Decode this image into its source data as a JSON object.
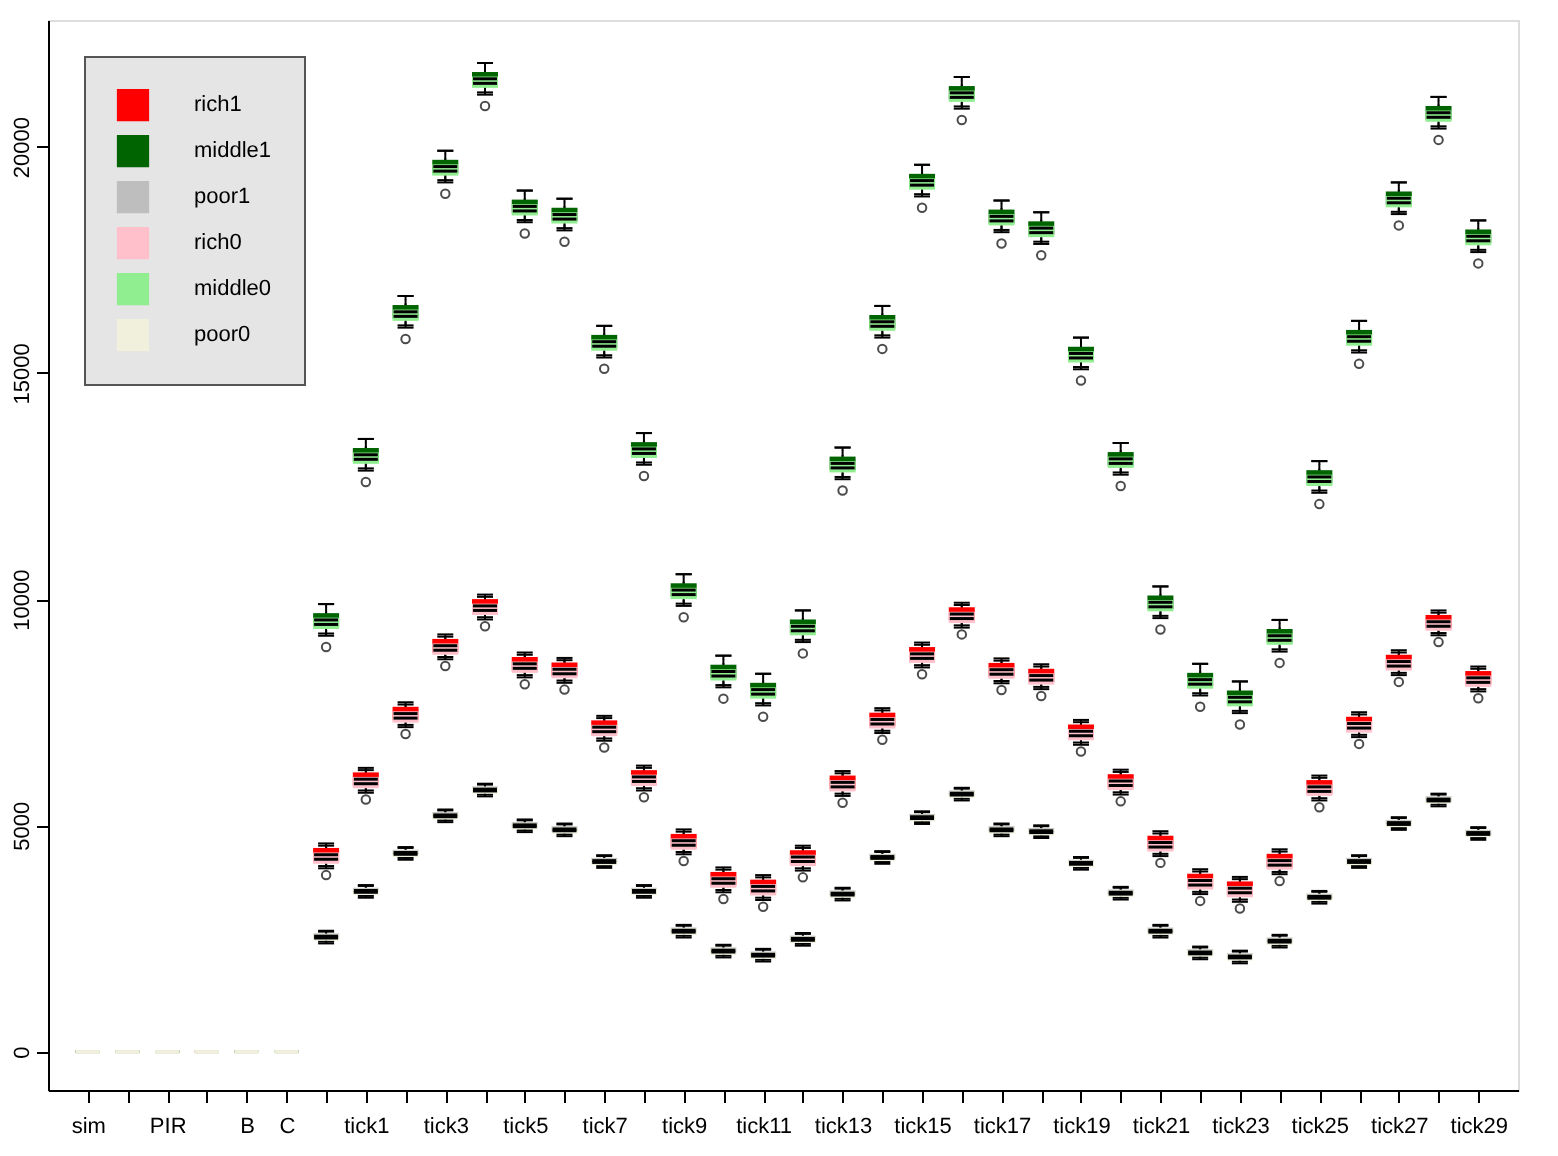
{
  "chart_data": {
    "type": "box",
    "categories": [
      "sim",
      null,
      "PIR",
      null,
      "B",
      "C",
      null,
      "tick1",
      null,
      "tick3",
      null,
      "tick5",
      null,
      "tick7",
      null,
      "tick9",
      null,
      "tick11",
      null,
      "tick13",
      null,
      "tick15",
      null,
      "tick17",
      null,
      "tick19",
      null,
      "tick21",
      null,
      "tick23",
      null,
      "tick25",
      null,
      "tick27",
      null,
      "tick29"
    ],
    "ylim": [
      -850,
      22800
    ],
    "yticks": [
      0,
      5000,
      10000,
      15000,
      20000
    ],
    "grid": false,
    "legend": "top left",
    "series": [
      {
        "name": "rich1",
        "color": "#ff0000",
        "boxes": [
          {
            "low": 0,
            "q1": 0,
            "median": 0,
            "q3": 0,
            "high": 0
          },
          {
            "low": 0,
            "q1": 0,
            "median": 0,
            "q3": 0,
            "high": 0
          },
          {
            "low": 0,
            "q1": 0,
            "median": 0,
            "q3": 0,
            "high": 0
          },
          {
            "low": 0,
            "q1": 0,
            "median": 0,
            "q3": 0,
            "high": 0
          },
          {
            "low": 0,
            "q1": 0,
            "median": 0,
            "q3": 0,
            "high": 0
          },
          {
            "low": 0,
            "q1": 0,
            "median": 0,
            "q3": 0,
            "high": 0
          },
          {
            "low": 4100,
            "q1": 4200,
            "median": 4350,
            "q3": 4500,
            "high": 4600
          },
          {
            "low": 5770,
            "q1": 5870,
            "median": 6020,
            "q3": 6170,
            "high": 6270
          },
          {
            "low": 7220,
            "q1": 7320,
            "median": 7470,
            "q3": 7620,
            "high": 7720
          },
          {
            "low": 8720,
            "q1": 8820,
            "median": 8970,
            "q3": 9120,
            "high": 9220
          },
          {
            "low": 9600,
            "q1": 9700,
            "median": 9850,
            "q3": 10000,
            "high": 10100
          },
          {
            "low": 8320,
            "q1": 8420,
            "median": 8570,
            "q3": 8720,
            "high": 8820
          },
          {
            "low": 8200,
            "q1": 8300,
            "median": 8450,
            "q3": 8600,
            "high": 8700
          },
          {
            "low": 6920,
            "q1": 7020,
            "median": 7170,
            "q3": 7320,
            "high": 7420
          },
          {
            "low": 5820,
            "q1": 5920,
            "median": 6070,
            "q3": 6220,
            "high": 6320
          },
          {
            "low": 4410,
            "q1": 4510,
            "median": 4660,
            "q3": 4810,
            "high": 4910
          },
          {
            "low": 3570,
            "q1": 3670,
            "median": 3820,
            "q3": 3970,
            "high": 4070
          },
          {
            "low": 3400,
            "q1": 3500,
            "median": 3650,
            "q3": 3800,
            "high": 3900
          },
          {
            "low": 4050,
            "q1": 4150,
            "median": 4300,
            "q3": 4450,
            "high": 4550
          },
          {
            "low": 5700,
            "q1": 5800,
            "median": 5950,
            "q3": 6100,
            "high": 6200
          },
          {
            "low": 7090,
            "q1": 7190,
            "median": 7340,
            "q3": 7490,
            "high": 7590
          },
          {
            "low": 8540,
            "q1": 8640,
            "median": 8790,
            "q3": 8940,
            "high": 9040
          },
          {
            "low": 9420,
            "q1": 9520,
            "median": 9670,
            "q3": 9820,
            "high": 9920
          },
          {
            "low": 8190,
            "q1": 8290,
            "median": 8440,
            "q3": 8590,
            "high": 8690
          },
          {
            "low": 8060,
            "q1": 8160,
            "median": 8310,
            "q3": 8460,
            "high": 8560
          },
          {
            "low": 6830,
            "q1": 6930,
            "median": 7080,
            "q3": 7230,
            "high": 7330
          },
          {
            "low": 5730,
            "q1": 5830,
            "median": 5980,
            "q3": 6130,
            "high": 6230
          },
          {
            "low": 4370,
            "q1": 4470,
            "median": 4620,
            "q3": 4770,
            "high": 4870
          },
          {
            "low": 3530,
            "q1": 3630,
            "median": 3780,
            "q3": 3930,
            "high": 4030
          },
          {
            "low": 3360,
            "q1": 3460,
            "median": 3610,
            "q3": 3760,
            "high": 3860
          },
          {
            "low": 3970,
            "q1": 4070,
            "median": 4220,
            "q3": 4370,
            "high": 4470
          },
          {
            "low": 5600,
            "q1": 5700,
            "median": 5850,
            "q3": 6000,
            "high": 6100
          },
          {
            "low": 7000,
            "q1": 7100,
            "median": 7250,
            "q3": 7400,
            "high": 7500
          },
          {
            "low": 8370,
            "q1": 8470,
            "median": 8620,
            "q3": 8770,
            "high": 8870
          },
          {
            "low": 9250,
            "q1": 9350,
            "median": 9500,
            "q3": 9650,
            "high": 9750
          },
          {
            "low": 8010,
            "q1": 8110,
            "median": 8260,
            "q3": 8410,
            "high": 8510
          }
        ]
      },
      {
        "name": "middle1",
        "color": "#006400",
        "boxes": [
          {
            "low": 0,
            "q1": 0,
            "median": 0,
            "q3": 0,
            "high": 0
          },
          {
            "low": 0,
            "q1": 0,
            "median": 0,
            "q3": 0,
            "high": 0
          },
          {
            "low": 0,
            "q1": 0,
            "median": 0,
            "q3": 0,
            "high": 0
          },
          {
            "low": 0,
            "q1": 0,
            "median": 0,
            "q3": 0,
            "high": 0
          },
          {
            "low": 0,
            "q1": 0,
            "median": 0,
            "q3": 0,
            "high": 0
          },
          {
            "low": 0,
            "q1": 0,
            "median": 0,
            "q3": 0,
            "high": 0
          },
          {
            "low": 9240,
            "q1": 9390,
            "median": 9540,
            "q3": 9690,
            "high": 9890
          },
          {
            "low": 12890,
            "q1": 13040,
            "median": 13190,
            "q3": 13340,
            "high": 13540
          },
          {
            "low": 16050,
            "q1": 16200,
            "median": 16350,
            "q3": 16500,
            "high": 16700
          },
          {
            "low": 19260,
            "q1": 19410,
            "median": 19560,
            "q3": 19710,
            "high": 19910
          },
          {
            "low": 21200,
            "q1": 21350,
            "median": 21500,
            "q3": 21650,
            "high": 21850
          },
          {
            "low": 18380,
            "q1": 18530,
            "median": 18680,
            "q3": 18830,
            "high": 19030
          },
          {
            "low": 18200,
            "q1": 18350,
            "median": 18500,
            "q3": 18650,
            "high": 18850
          },
          {
            "low": 15390,
            "q1": 15540,
            "median": 15690,
            "q3": 15840,
            "high": 16040
          },
          {
            "low": 13020,
            "q1": 13170,
            "median": 13320,
            "q3": 13470,
            "high": 13670
          },
          {
            "low": 9900,
            "q1": 10050,
            "median": 10200,
            "q3": 10350,
            "high": 10550
          },
          {
            "low": 8100,
            "q1": 8250,
            "median": 8400,
            "q3": 8550,
            "high": 8750
          },
          {
            "low": 7700,
            "q1": 7850,
            "median": 8000,
            "q3": 8150,
            "high": 8350
          },
          {
            "low": 9100,
            "q1": 9250,
            "median": 9400,
            "q3": 9550,
            "high": 9750
          },
          {
            "low": 12700,
            "q1": 12850,
            "median": 13000,
            "q3": 13150,
            "high": 13350
          },
          {
            "low": 15830,
            "q1": 15980,
            "median": 16130,
            "q3": 16280,
            "high": 16480
          },
          {
            "low": 18950,
            "q1": 19100,
            "median": 19250,
            "q3": 19400,
            "high": 19600
          },
          {
            "low": 20890,
            "q1": 21040,
            "median": 21190,
            "q3": 21340,
            "high": 21540
          },
          {
            "low": 18160,
            "q1": 18310,
            "median": 18460,
            "q3": 18610,
            "high": 18810
          },
          {
            "low": 17900,
            "q1": 18050,
            "median": 18200,
            "q3": 18350,
            "high": 18550
          },
          {
            "low": 15130,
            "q1": 15280,
            "median": 15430,
            "q3": 15580,
            "high": 15780
          },
          {
            "low": 12800,
            "q1": 12950,
            "median": 13100,
            "q3": 13250,
            "high": 13450
          },
          {
            "low": 9630,
            "q1": 9780,
            "median": 9930,
            "q3": 10080,
            "high": 10280
          },
          {
            "low": 7920,
            "q1": 8070,
            "median": 8220,
            "q3": 8370,
            "high": 8570
          },
          {
            "low": 7530,
            "q1": 7680,
            "median": 7830,
            "q3": 7980,
            "high": 8180
          },
          {
            "low": 8890,
            "q1": 9040,
            "median": 9190,
            "q3": 9340,
            "high": 9540
          },
          {
            "low": 12400,
            "q1": 12550,
            "median": 12700,
            "q3": 12850,
            "high": 13050
          },
          {
            "low": 15500,
            "q1": 15650,
            "median": 15800,
            "q3": 15950,
            "high": 16150
          },
          {
            "low": 18560,
            "q1": 18710,
            "median": 18860,
            "q3": 19010,
            "high": 19210
          },
          {
            "low": 20450,
            "q1": 20600,
            "median": 20750,
            "q3": 20900,
            "high": 21100
          },
          {
            "low": 17720,
            "q1": 17870,
            "median": 18020,
            "q3": 18170,
            "high": 18370
          }
        ]
      },
      {
        "name": "poor1",
        "color": "#bebebe",
        "boxes": [
          {
            "low": 0,
            "q1": 0,
            "median": 0,
            "q3": 0,
            "high": 0
          },
          {
            "low": 0,
            "q1": 0,
            "median": 0,
            "q3": 0,
            "high": 0
          },
          {
            "low": 0,
            "q1": 0,
            "median": 0,
            "q3": 0,
            "high": 0
          },
          {
            "low": 0,
            "q1": 0,
            "median": 0,
            "q3": 0,
            "high": 0
          },
          {
            "low": 0,
            "q1": 0,
            "median": 0,
            "q3": 0,
            "high": 0
          },
          {
            "low": 0,
            "q1": 0,
            "median": 0,
            "q3": 0,
            "high": 0
          },
          {
            "low": 2430,
            "q1": 2490,
            "median": 2550,
            "q3": 2610,
            "high": 2670
          },
          {
            "low": 3440,
            "q1": 3500,
            "median": 3560,
            "q3": 3620,
            "high": 3680
          },
          {
            "low": 4280,
            "q1": 4340,
            "median": 4400,
            "q3": 4460,
            "high": 4520
          },
          {
            "low": 5110,
            "q1": 5170,
            "median": 5230,
            "q3": 5290,
            "high": 5350
          },
          {
            "low": 5680,
            "q1": 5740,
            "median": 5800,
            "q3": 5860,
            "high": 5920
          },
          {
            "low": 4890,
            "q1": 4950,
            "median": 5010,
            "q3": 5070,
            "high": 5130
          },
          {
            "low": 4800,
            "q1": 4860,
            "median": 4920,
            "q3": 4980,
            "high": 5040
          },
          {
            "low": 4100,
            "q1": 4160,
            "median": 4220,
            "q3": 4280,
            "high": 4340
          },
          {
            "low": 3440,
            "q1": 3500,
            "median": 3560,
            "q3": 3620,
            "high": 3680
          },
          {
            "low": 2560,
            "q1": 2620,
            "median": 2680,
            "q3": 2740,
            "high": 2800
          },
          {
            "low": 2120,
            "q1": 2180,
            "median": 2240,
            "q3": 2300,
            "high": 2360
          },
          {
            "low": 2030,
            "q1": 2090,
            "median": 2150,
            "q3": 2210,
            "high": 2270
          },
          {
            "low": 2380,
            "q1": 2440,
            "median": 2500,
            "q3": 2560,
            "high": 2620
          },
          {
            "low": 3380,
            "q1": 3440,
            "median": 3500,
            "q3": 3560,
            "high": 3620
          },
          {
            "low": 4190,
            "q1": 4250,
            "median": 4310,
            "q3": 4370,
            "high": 4430
          },
          {
            "low": 5070,
            "q1": 5130,
            "median": 5190,
            "q3": 5250,
            "high": 5310
          },
          {
            "low": 5590,
            "q1": 5650,
            "median": 5710,
            "q3": 5770,
            "high": 5830
          },
          {
            "low": 4800,
            "q1": 4860,
            "median": 4920,
            "q3": 4980,
            "high": 5040
          },
          {
            "low": 4760,
            "q1": 4820,
            "median": 4880,
            "q3": 4940,
            "high": 5000
          },
          {
            "low": 4060,
            "q1": 4120,
            "median": 4180,
            "q3": 4240,
            "high": 4300
          },
          {
            "low": 3400,
            "q1": 3460,
            "median": 3520,
            "q3": 3580,
            "high": 3640
          },
          {
            "low": 2560,
            "q1": 2620,
            "median": 2680,
            "q3": 2740,
            "high": 2800
          },
          {
            "low": 2080,
            "q1": 2140,
            "median": 2200,
            "q3": 2260,
            "high": 2320
          },
          {
            "low": 1990,
            "q1": 2050,
            "median": 2110,
            "q3": 2170,
            "high": 2230
          },
          {
            "low": 2340,
            "q1": 2400,
            "median": 2460,
            "q3": 2520,
            "high": 2580
          },
          {
            "low": 3310,
            "q1": 3370,
            "median": 3430,
            "q3": 3490,
            "high": 3550
          },
          {
            "low": 4100,
            "q1": 4160,
            "median": 4220,
            "q3": 4280,
            "high": 4340
          },
          {
            "low": 4940,
            "q1": 5000,
            "median": 5060,
            "q3": 5120,
            "high": 5180
          },
          {
            "low": 5460,
            "q1": 5520,
            "median": 5580,
            "q3": 5640,
            "high": 5700
          },
          {
            "low": 4720,
            "q1": 4780,
            "median": 4840,
            "q3": 4900,
            "high": 4960
          }
        ]
      },
      {
        "name": "rich0",
        "color": "#ffc0cb",
        "boxes": [
          {
            "low": 0,
            "q1": 0,
            "median": 0,
            "q3": 0,
            "high": 0
          },
          {
            "low": 0,
            "q1": 0,
            "median": 0,
            "q3": 0,
            "high": 0
          },
          {
            "low": 0,
            "q1": 0,
            "median": 0,
            "q3": 0,
            "high": 0
          },
          {
            "low": 0,
            "q1": 0,
            "median": 0,
            "q3": 0,
            "high": 0
          },
          {
            "low": 0,
            "q1": 0,
            "median": 0,
            "q3": 0,
            "high": 0
          },
          {
            "low": 0,
            "q1": 0,
            "median": 0,
            "q3": 0,
            "high": 0
          },
          {
            "low": 4050,
            "q1": 4150,
            "median": 4250,
            "q3": 4400,
            "high": 4550,
            "outliers": [
              3900
            ]
          },
          {
            "low": 5720,
            "q1": 5820,
            "median": 5920,
            "q3": 6070,
            "high": 6220,
            "outliers": [
              5570
            ]
          },
          {
            "low": 7170,
            "q1": 7270,
            "median": 7370,
            "q3": 7520,
            "high": 7670,
            "outliers": [
              7020
            ]
          },
          {
            "low": 8670,
            "q1": 8770,
            "median": 8870,
            "q3": 9020,
            "high": 9170,
            "outliers": [
              8520
            ]
          },
          {
            "low": 9550,
            "q1": 9650,
            "median": 9750,
            "q3": 9900,
            "high": 10050,
            "outliers": [
              9400
            ]
          },
          {
            "low": 8270,
            "q1": 8370,
            "median": 8470,
            "q3": 8620,
            "high": 8770,
            "outliers": [
              8120
            ]
          },
          {
            "low": 8150,
            "q1": 8250,
            "median": 8350,
            "q3": 8500,
            "high": 8650,
            "outliers": [
              8000
            ]
          },
          {
            "low": 6870,
            "q1": 6970,
            "median": 7070,
            "q3": 7220,
            "high": 7370,
            "outliers": [
              6720
            ]
          },
          {
            "low": 5770,
            "q1": 5870,
            "median": 5970,
            "q3": 6120,
            "high": 6270,
            "outliers": [
              5620
            ]
          },
          {
            "low": 4360,
            "q1": 4460,
            "median": 4560,
            "q3": 4710,
            "high": 4860,
            "outliers": [
              4210
            ]
          },
          {
            "low": 3520,
            "q1": 3620,
            "median": 3720,
            "q3": 3870,
            "high": 4020,
            "outliers": [
              3370
            ]
          },
          {
            "low": 3350,
            "q1": 3450,
            "median": 3550,
            "q3": 3700,
            "high": 3850,
            "outliers": [
              3200
            ]
          },
          {
            "low": 4000,
            "q1": 4100,
            "median": 4200,
            "q3": 4350,
            "high": 4500,
            "outliers": [
              3850
            ]
          },
          {
            "low": 5650,
            "q1": 5750,
            "median": 5850,
            "q3": 6000,
            "high": 6150,
            "outliers": [
              5500
            ]
          },
          {
            "low": 7040,
            "q1": 7140,
            "median": 7240,
            "q3": 7390,
            "high": 7540,
            "outliers": [
              6890
            ]
          },
          {
            "low": 8490,
            "q1": 8590,
            "median": 8690,
            "q3": 8840,
            "high": 8990,
            "outliers": [
              8340
            ]
          },
          {
            "low": 9370,
            "q1": 9470,
            "median": 9570,
            "q3": 9720,
            "high": 9870,
            "outliers": [
              9220
            ]
          },
          {
            "low": 8140,
            "q1": 8240,
            "median": 8340,
            "q3": 8490,
            "high": 8640,
            "outliers": [
              7990
            ]
          },
          {
            "low": 8010,
            "q1": 8110,
            "median": 8210,
            "q3": 8360,
            "high": 8510,
            "outliers": [
              7860
            ]
          },
          {
            "low": 6780,
            "q1": 6880,
            "median": 6980,
            "q3": 7130,
            "high": 7280,
            "outliers": [
              6630
            ]
          },
          {
            "low": 5680,
            "q1": 5780,
            "median": 5880,
            "q3": 6030,
            "high": 6180,
            "outliers": [
              5530
            ]
          },
          {
            "low": 4320,
            "q1": 4420,
            "median": 4520,
            "q3": 4670,
            "high": 4820,
            "outliers": [
              4170
            ]
          },
          {
            "low": 3480,
            "q1": 3580,
            "median": 3680,
            "q3": 3830,
            "high": 3980,
            "outliers": [
              3330
            ]
          },
          {
            "low": 3310,
            "q1": 3410,
            "median": 3510,
            "q3": 3660,
            "high": 3810,
            "outliers": [
              3160
            ]
          },
          {
            "low": 3920,
            "q1": 4020,
            "median": 4120,
            "q3": 4270,
            "high": 4420,
            "outliers": [
              3770
            ]
          },
          {
            "low": 5550,
            "q1": 5650,
            "median": 5750,
            "q3": 5900,
            "high": 6050,
            "outliers": [
              5400
            ]
          },
          {
            "low": 6950,
            "q1": 7050,
            "median": 7150,
            "q3": 7300,
            "high": 7450,
            "outliers": [
              6800
            ]
          },
          {
            "low": 8320,
            "q1": 8420,
            "median": 8520,
            "q3": 8670,
            "high": 8820,
            "outliers": [
              8170
            ]
          },
          {
            "low": 9200,
            "q1": 9300,
            "median": 9400,
            "q3": 9550,
            "high": 9700,
            "outliers": [
              9050
            ]
          },
          {
            "low": 7960,
            "q1": 8060,
            "median": 8160,
            "q3": 8310,
            "high": 8460,
            "outliers": [
              7810
            ]
          }
        ]
      },
      {
        "name": "middle0",
        "color": "#90ee90",
        "boxes": [
          {
            "low": 0,
            "q1": 0,
            "median": 0,
            "q3": 0,
            "high": 0
          },
          {
            "low": 0,
            "q1": 0,
            "median": 0,
            "q3": 0,
            "high": 0
          },
          {
            "low": 0,
            "q1": 0,
            "median": 0,
            "q3": 0,
            "high": 0
          },
          {
            "low": 0,
            "q1": 0,
            "median": 0,
            "q3": 0,
            "high": 0
          },
          {
            "low": 0,
            "q1": 0,
            "median": 0,
            "q3": 0,
            "high": 0
          },
          {
            "low": 0,
            "q1": 0,
            "median": 0,
            "q3": 0,
            "high": 0
          },
          {
            "low": 9190,
            "q1": 9340,
            "median": 9440,
            "q3": 9590,
            "high": 9890,
            "outliers": [
              8940
            ]
          },
          {
            "low": 12840,
            "q1": 12990,
            "median": 13090,
            "q3": 13240,
            "high": 13540,
            "outliers": [
              12590
            ]
          },
          {
            "low": 16000,
            "q1": 16150,
            "median": 16250,
            "q3": 16400,
            "high": 16700,
            "outliers": [
              15750
            ]
          },
          {
            "low": 19210,
            "q1": 19360,
            "median": 19460,
            "q3": 19610,
            "high": 19910,
            "outliers": [
              18960
            ]
          },
          {
            "low": 21150,
            "q1": 21300,
            "median": 21400,
            "q3": 21550,
            "high": 21850,
            "outliers": [
              20900
            ]
          },
          {
            "low": 18330,
            "q1": 18480,
            "median": 18580,
            "q3": 18730,
            "high": 19030,
            "outliers": [
              18080
            ]
          },
          {
            "low": 18150,
            "q1": 18300,
            "median": 18400,
            "q3": 18550,
            "high": 18850,
            "outliers": [
              17900
            ]
          },
          {
            "low": 15340,
            "q1": 15490,
            "median": 15590,
            "q3": 15740,
            "high": 16040,
            "outliers": [
              15090
            ]
          },
          {
            "low": 12970,
            "q1": 13120,
            "median": 13220,
            "q3": 13370,
            "high": 13670,
            "outliers": [
              12720
            ]
          },
          {
            "low": 9850,
            "q1": 10000,
            "median": 10100,
            "q3": 10250,
            "high": 10550,
            "outliers": [
              9600
            ]
          },
          {
            "low": 8050,
            "q1": 8200,
            "median": 8300,
            "q3": 8450,
            "high": 8750,
            "outliers": [
              7800
            ]
          },
          {
            "low": 7650,
            "q1": 7800,
            "median": 7900,
            "q3": 8050,
            "high": 8350,
            "outliers": [
              7400
            ]
          },
          {
            "low": 9050,
            "q1": 9200,
            "median": 9300,
            "q3": 9450,
            "high": 9750,
            "outliers": [
              8800
            ]
          },
          {
            "low": 12650,
            "q1": 12800,
            "median": 12900,
            "q3": 13050,
            "high": 13350,
            "outliers": [
              12400
            ]
          },
          {
            "low": 15780,
            "q1": 15930,
            "median": 16030,
            "q3": 16180,
            "high": 16480,
            "outliers": [
              15530
            ]
          },
          {
            "low": 18900,
            "q1": 19050,
            "median": 19150,
            "q3": 19300,
            "high": 19600,
            "outliers": [
              18650
            ]
          },
          {
            "low": 20840,
            "q1": 20990,
            "median": 21090,
            "q3": 21240,
            "high": 21540,
            "outliers": [
              20590
            ]
          },
          {
            "low": 18110,
            "q1": 18260,
            "median": 18360,
            "q3": 18510,
            "high": 18810,
            "outliers": [
              17860
            ]
          },
          {
            "low": 17850,
            "q1": 18000,
            "median": 18100,
            "q3": 18250,
            "high": 18550,
            "outliers": [
              17600
            ]
          },
          {
            "low": 15080,
            "q1": 15230,
            "median": 15330,
            "q3": 15480,
            "high": 15780,
            "outliers": [
              14830
            ]
          },
          {
            "low": 12750,
            "q1": 12900,
            "median": 13000,
            "q3": 13150,
            "high": 13450,
            "outliers": [
              12500
            ]
          },
          {
            "low": 9580,
            "q1": 9730,
            "median": 9830,
            "q3": 9980,
            "high": 10280,
            "outliers": [
              9330
            ]
          },
          {
            "low": 7870,
            "q1": 8020,
            "median": 8120,
            "q3": 8270,
            "high": 8570,
            "outliers": [
              7620
            ]
          },
          {
            "low": 7480,
            "q1": 7630,
            "median": 7730,
            "q3": 7880,
            "high": 8180,
            "outliers": [
              7230
            ]
          },
          {
            "low": 8840,
            "q1": 8990,
            "median": 9090,
            "q3": 9240,
            "high": 9540,
            "outliers": [
              8590
            ]
          },
          {
            "low": 12350,
            "q1": 12500,
            "median": 12600,
            "q3": 12750,
            "high": 13050,
            "outliers": [
              12100
            ]
          },
          {
            "low": 15450,
            "q1": 15600,
            "median": 15700,
            "q3": 15850,
            "high": 16150,
            "outliers": [
              15200
            ]
          },
          {
            "low": 18510,
            "q1": 18660,
            "median": 18760,
            "q3": 18910,
            "high": 19210,
            "outliers": [
              18260
            ]
          },
          {
            "low": 20400,
            "q1": 20550,
            "median": 20650,
            "q3": 20800,
            "high": 21100,
            "outliers": [
              20150
            ]
          },
          {
            "low": 17670,
            "q1": 17820,
            "median": 17920,
            "q3": 18070,
            "high": 18370,
            "outliers": [
              17420
            ]
          }
        ]
      },
      {
        "name": "poor0",
        "color": "#f0f0dc",
        "boxes": [
          {
            "low": 0,
            "q1": 0,
            "median": 0,
            "q3": 0,
            "high": 0
          },
          {
            "low": 0,
            "q1": 0,
            "median": 0,
            "q3": 0,
            "high": 0
          },
          {
            "low": 0,
            "q1": 0,
            "median": 0,
            "q3": 0,
            "high": 0
          },
          {
            "low": 0,
            "q1": 0,
            "median": 0,
            "q3": 0,
            "high": 0
          },
          {
            "low": 0,
            "q1": 0,
            "median": 0,
            "q3": 0,
            "high": 0
          },
          {
            "low": 0,
            "q1": 0,
            "median": 0,
            "q3": 0,
            "high": 0
          },
          {
            "low": 2390,
            "q1": 2450,
            "median": 2510,
            "q3": 2590,
            "high": 2650
          },
          {
            "low": 3400,
            "q1": 3460,
            "median": 3520,
            "q3": 3600,
            "high": 3660
          },
          {
            "low": 4240,
            "q1": 4300,
            "median": 4360,
            "q3": 4440,
            "high": 4500
          },
          {
            "low": 5070,
            "q1": 5130,
            "median": 5190,
            "q3": 5270,
            "high": 5330
          },
          {
            "low": 5640,
            "q1": 5700,
            "median": 5760,
            "q3": 5840,
            "high": 5900
          },
          {
            "low": 4850,
            "q1": 4910,
            "median": 4970,
            "q3": 5050,
            "high": 5110
          },
          {
            "low": 4760,
            "q1": 4820,
            "median": 4880,
            "q3": 4960,
            "high": 5020
          },
          {
            "low": 4060,
            "q1": 4120,
            "median": 4180,
            "q3": 4260,
            "high": 4320
          },
          {
            "low": 3400,
            "q1": 3460,
            "median": 3520,
            "q3": 3600,
            "high": 3660
          },
          {
            "low": 2520,
            "q1": 2580,
            "median": 2640,
            "q3": 2720,
            "high": 2780
          },
          {
            "low": 2080,
            "q1": 2140,
            "median": 2200,
            "q3": 2280,
            "high": 2340
          },
          {
            "low": 1990,
            "q1": 2050,
            "median": 2110,
            "q3": 2190,
            "high": 2250
          },
          {
            "low": 2340,
            "q1": 2400,
            "median": 2460,
            "q3": 2540,
            "high": 2600
          },
          {
            "low": 3340,
            "q1": 3400,
            "median": 3460,
            "q3": 3540,
            "high": 3600
          },
          {
            "low": 4150,
            "q1": 4210,
            "median": 4270,
            "q3": 4350,
            "high": 4410
          },
          {
            "low": 5030,
            "q1": 5090,
            "median": 5150,
            "q3": 5230,
            "high": 5290
          },
          {
            "low": 5550,
            "q1": 5610,
            "median": 5670,
            "q3": 5750,
            "high": 5810
          },
          {
            "low": 4760,
            "q1": 4820,
            "median": 4880,
            "q3": 4960,
            "high": 5020
          },
          {
            "low": 4720,
            "q1": 4780,
            "median": 4840,
            "q3": 4920,
            "high": 4980
          },
          {
            "low": 4020,
            "q1": 4080,
            "median": 4140,
            "q3": 4220,
            "high": 4280
          },
          {
            "low": 3360,
            "q1": 3420,
            "median": 3480,
            "q3": 3560,
            "high": 3620
          },
          {
            "low": 2520,
            "q1": 2580,
            "median": 2640,
            "q3": 2720,
            "high": 2780
          },
          {
            "low": 2040,
            "q1": 2100,
            "median": 2160,
            "q3": 2240,
            "high": 2300
          },
          {
            "low": 1950,
            "q1": 2010,
            "median": 2070,
            "q3": 2150,
            "high": 2210
          },
          {
            "low": 2300,
            "q1": 2360,
            "median": 2420,
            "q3": 2500,
            "high": 2560
          },
          {
            "low": 3270,
            "q1": 3330,
            "median": 3390,
            "q3": 3470,
            "high": 3530
          },
          {
            "low": 4060,
            "q1": 4120,
            "median": 4180,
            "q3": 4260,
            "high": 4320
          },
          {
            "low": 4900,
            "q1": 4960,
            "median": 5020,
            "q3": 5100,
            "high": 5160
          },
          {
            "low": 5420,
            "q1": 5480,
            "median": 5540,
            "q3": 5620,
            "high": 5680
          },
          {
            "low": 4680,
            "q1": 4740,
            "median": 4800,
            "q3": 4880,
            "high": 4940
          }
        ]
      }
    ]
  }
}
